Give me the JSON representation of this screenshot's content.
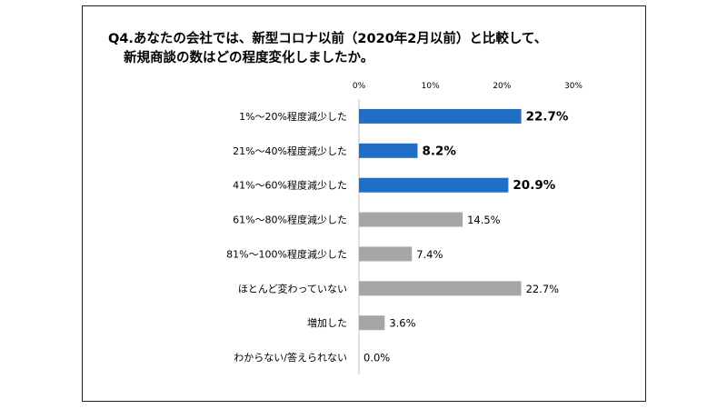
{
  "chart_data": {
    "type": "bar",
    "orientation": "horizontal",
    "title_line1": "Q4.あなたの会社では、新型コロナ以前（2020年2月以前）と比較して、",
    "title_line2": "新規商談の数はどの程度変化しましたか。",
    "xlim": [
      0,
      30
    ],
    "xticks": [
      "0%",
      "10%",
      "20%",
      "30%"
    ],
    "xtick_values": [
      0,
      10,
      20,
      30
    ],
    "categories": [
      "1%～20%程度減少した",
      "21%～40%程度減少した",
      "41%～60%程度減少した",
      "61%～80%程度減少した",
      "81%～100%程度減少した",
      "ほとんど変わっていない",
      "増加した",
      "わからない/答えられない"
    ],
    "values": [
      22.7,
      8.2,
      20.9,
      14.5,
      7.4,
      22.7,
      3.6,
      0.0
    ],
    "value_labels": [
      "22.7%",
      "8.2%",
      "20.9%",
      "14.5%",
      "7.4%",
      "22.7%",
      "3.6%",
      "0.0%"
    ],
    "highlighted": [
      true,
      true,
      true,
      false,
      false,
      false,
      false,
      false
    ],
    "colors": {
      "highlight": "#1f6fc5",
      "normal": "#a6a6a6"
    },
    "grid": false,
    "legend": "none"
  }
}
